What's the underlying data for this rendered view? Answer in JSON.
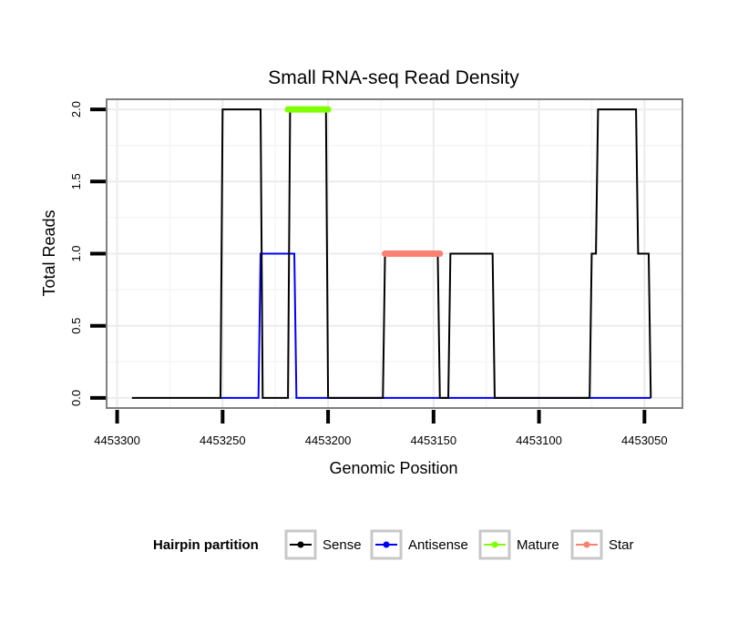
{
  "chart_data": {
    "type": "line",
    "title": "Small RNA-seq Read Density",
    "xlabel": "Genomic Position",
    "ylabel": "Total Reads",
    "xlim": [
      4453305,
      4453032
    ],
    "x_reversed": true,
    "ylim": [
      -0.07,
      2.07
    ],
    "grid": true,
    "x_ticks": [
      4453300,
      4453250,
      4453200,
      4453150,
      4453100,
      4453050
    ],
    "x_tick_labels": [
      "4453300",
      "4453250",
      "4453200",
      "4453150",
      "4453100",
      "4453050"
    ],
    "y_ticks": [
      0,
      0.5,
      1,
      1.5,
      2
    ],
    "y_tick_labels": [
      "0.0",
      "0.5",
      "1.0",
      "1.5",
      "2.0"
    ],
    "legend": {
      "title": "Hairpin partition",
      "position": "bottom",
      "entries": [
        "Sense",
        "Antisense",
        "Mature",
        "Star"
      ]
    },
    "series": [
      {
        "name": "Sense",
        "color": "#000000",
        "points": [
          [
            4453293,
            0
          ],
          [
            4453251,
            0
          ],
          [
            4453250,
            2
          ],
          [
            4453232,
            2
          ],
          [
            4453231,
            0
          ],
          [
            4453219,
            0
          ],
          [
            4453218,
            2
          ],
          [
            4453201,
            2
          ],
          [
            4453200,
            0
          ],
          [
            4453174,
            0
          ],
          [
            4453173,
            1
          ],
          [
            4453148,
            1
          ],
          [
            4453147,
            0
          ],
          [
            4453143,
            0
          ],
          [
            4453142,
            1
          ],
          [
            4453122,
            1
          ],
          [
            4453121,
            0
          ],
          [
            4453076,
            0
          ],
          [
            4453075,
            1
          ],
          [
            4453073,
            1
          ],
          [
            4453072,
            2
          ],
          [
            4453054,
            2
          ],
          [
            4453053,
            1
          ],
          [
            4453048,
            1
          ],
          [
            4453047,
            0
          ]
        ]
      },
      {
        "name": "Antisense",
        "color": "#0000ff",
        "points": [
          [
            4453251,
            0
          ],
          [
            4453233,
            0
          ],
          [
            4453232,
            1
          ],
          [
            4453216,
            1
          ],
          [
            4453215,
            0
          ],
          [
            4453047,
            0
          ]
        ]
      },
      {
        "name": "Mature",
        "color": "#7fff00",
        "points": [
          [
            4453219,
            2
          ],
          [
            4453200,
            2
          ]
        ]
      },
      {
        "name": "Star",
        "color": "#fa8072",
        "points": [
          [
            4453173,
            1
          ],
          [
            4453147,
            1
          ]
        ]
      }
    ]
  }
}
